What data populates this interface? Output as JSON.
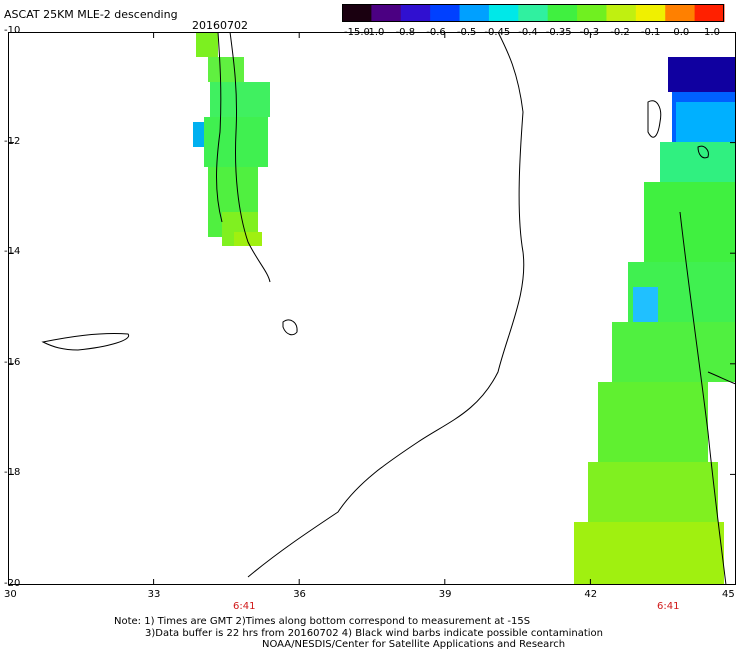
{
  "title": "ASCAT 25KM MLE-2 descending",
  "date": "20160702",
  "colorbar": {
    "labels": [
      "-15.0",
      "-1.0",
      "-0.8",
      "-0.6",
      "-0.5",
      "-0.45",
      "-0.4",
      "-0.35",
      "-0.3",
      "-0.2",
      "-0.1",
      "0.0",
      "1.0"
    ],
    "colors": [
      "#1a0010",
      "#4b0082",
      "#3010d0",
      "#0040ff",
      "#00a0ff",
      "#00e8e8",
      "#30f0a0",
      "#40f040",
      "#70f020",
      "#c0f010",
      "#f0f000",
      "#ff8000",
      "#ff2000"
    ]
  },
  "axes": {
    "y_labels": [
      "-10",
      "-12",
      "-14",
      "-16",
      "-18",
      "-20"
    ],
    "x_labels": [
      "30",
      "33",
      "36",
      "39",
      "42",
      "45"
    ],
    "ylim": [
      -20,
      -10
    ],
    "xlim": [
      30,
      45
    ]
  },
  "pass_times": [
    "6:41",
    "6:41"
  ],
  "notes": {
    "line1": "Note: 1) Times are GMT 2)Times along bottom correspond to measurement at -15S",
    "line2": "3)Data buffer is 22 hrs from 20160702 4) Black wind barbs indicate possible contamination",
    "line3": "NOAA/NESDIS/Center for Satellite Applications and Research"
  }
}
